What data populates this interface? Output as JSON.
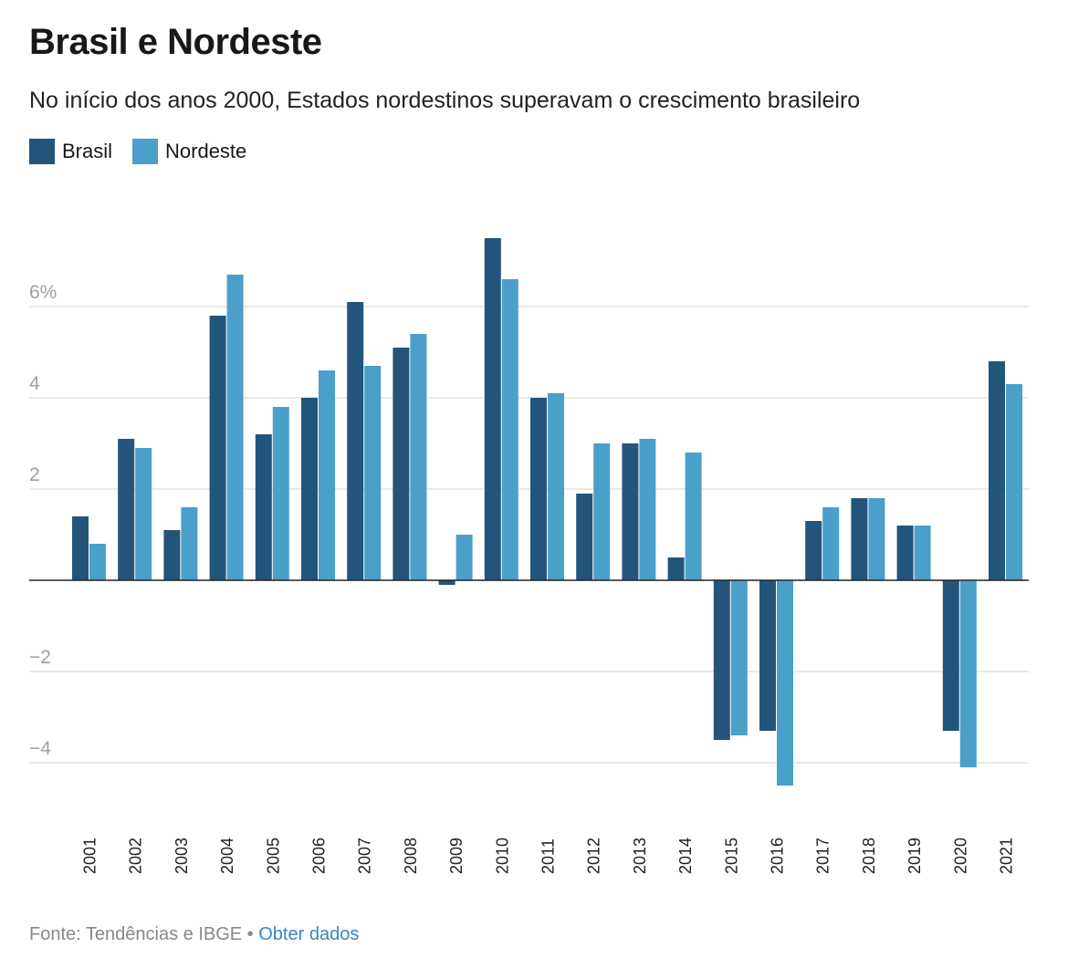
{
  "title": "Brasil e Nordeste",
  "subtitle": "No início dos anos 2000, Estados nordestinos superavam o crescimento brasileiro",
  "footer": {
    "source": "Fonte: Tendências e IBGE",
    "separator": "•",
    "link": "Obter dados"
  },
  "chart_data": {
    "type": "bar",
    "categories": [
      "2001",
      "2002",
      "2003",
      "2004",
      "2005",
      "2006",
      "2007",
      "2008",
      "2009",
      "2010",
      "2011",
      "2012",
      "2013",
      "2014",
      "2015",
      "2016",
      "2017",
      "2018",
      "2019",
      "2020",
      "2021"
    ],
    "series": [
      {
        "name": "Brasil",
        "color": "#23557a",
        "values": [
          1.4,
          3.1,
          1.1,
          5.8,
          3.2,
          4.0,
          6.1,
          5.1,
          -0.1,
          7.5,
          4.0,
          1.9,
          3.0,
          0.5,
          -3.5,
          -3.3,
          1.3,
          1.8,
          1.2,
          -3.3,
          4.8
        ]
      },
      {
        "name": "Nordeste",
        "color": "#4ba0c9",
        "values": [
          0.8,
          2.9,
          1.6,
          6.7,
          3.8,
          4.6,
          4.7,
          5.4,
          1.0,
          6.6,
          4.1,
          3.0,
          3.1,
          2.8,
          -3.4,
          -4.5,
          1.6,
          1.8,
          1.2,
          -4.1,
          4.3
        ]
      }
    ],
    "yticks": [
      {
        "value": 6,
        "label": "6%"
      },
      {
        "value": 4,
        "label": "4"
      },
      {
        "value": 2,
        "label": "2"
      },
      {
        "value": -2,
        "label": "−2"
      },
      {
        "value": -4,
        "label": "−4"
      }
    ],
    "ylim": [
      -5,
      8
    ],
    "grid": true,
    "legend": "top-left"
  }
}
